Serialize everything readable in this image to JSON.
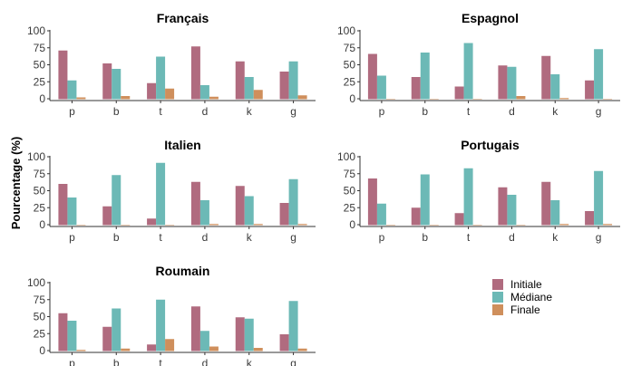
{
  "chart_data": {
    "type": "bar",
    "ylabel": "Pourcentage (%)",
    "ylim": [
      0,
      100
    ],
    "yticks": [
      0,
      25,
      50,
      75,
      100
    ],
    "grid": false,
    "legend_position": "bottom-right",
    "series_colors": {
      "Initiale": "#b06b7f",
      "Médiane": "#6cb9b6",
      "Finale": "#cf8f5c"
    },
    "legend": [
      "Initiale",
      "Médiane",
      "Finale"
    ],
    "categories": [
      "p",
      "b",
      "t",
      "d",
      "k",
      "g"
    ],
    "panels": [
      {
        "title": "Français",
        "series": [
          {
            "name": "Initiale",
            "values": [
              71,
              52,
              23,
              77,
              55,
              40
            ]
          },
          {
            "name": "Médiane",
            "values": [
              27,
              44,
              62,
              20,
              32,
              55
            ]
          },
          {
            "name": "Finale",
            "values": [
              2,
              4,
              15,
              3,
              13,
              5
            ]
          }
        ]
      },
      {
        "title": "Espagnol",
        "series": [
          {
            "name": "Initiale",
            "values": [
              66,
              32,
              18,
              49,
              63,
              27
            ]
          },
          {
            "name": "Médiane",
            "values": [
              34,
              68,
              82,
              47,
              36,
              73
            ]
          },
          {
            "name": "Finale",
            "values": [
              0,
              0,
              0,
              4,
              1,
              0
            ]
          }
        ]
      },
      {
        "title": "Italien",
        "series": [
          {
            "name": "Initiale",
            "values": [
              60,
              27,
              9,
              63,
              57,
              32
            ]
          },
          {
            "name": "Médiane",
            "values": [
              40,
              73,
              91,
              36,
              42,
              67
            ]
          },
          {
            "name": "Finale",
            "values": [
              0,
              0,
              0,
              1,
              1,
              1
            ]
          }
        ]
      },
      {
        "title": "Portugais",
        "series": [
          {
            "name": "Initiale",
            "values": [
              68,
              25,
              17,
              55,
              63,
              20
            ]
          },
          {
            "name": "Médiane",
            "values": [
              31,
              74,
              83,
              44,
              36,
              79
            ]
          },
          {
            "name": "Finale",
            "values": [
              0,
              0,
              0,
              0,
              1,
              1
            ]
          }
        ]
      },
      {
        "title": "Roumain",
        "series": [
          {
            "name": "Initiale",
            "values": [
              55,
              35,
              9,
              65,
              49,
              24
            ]
          },
          {
            "name": "Médiane",
            "values": [
              44,
              62,
              75,
              29,
              47,
              73
            ]
          },
          {
            "name": "Finale",
            "values": [
              1,
              3,
              17,
              6,
              4,
              3
            ]
          }
        ]
      }
    ]
  }
}
